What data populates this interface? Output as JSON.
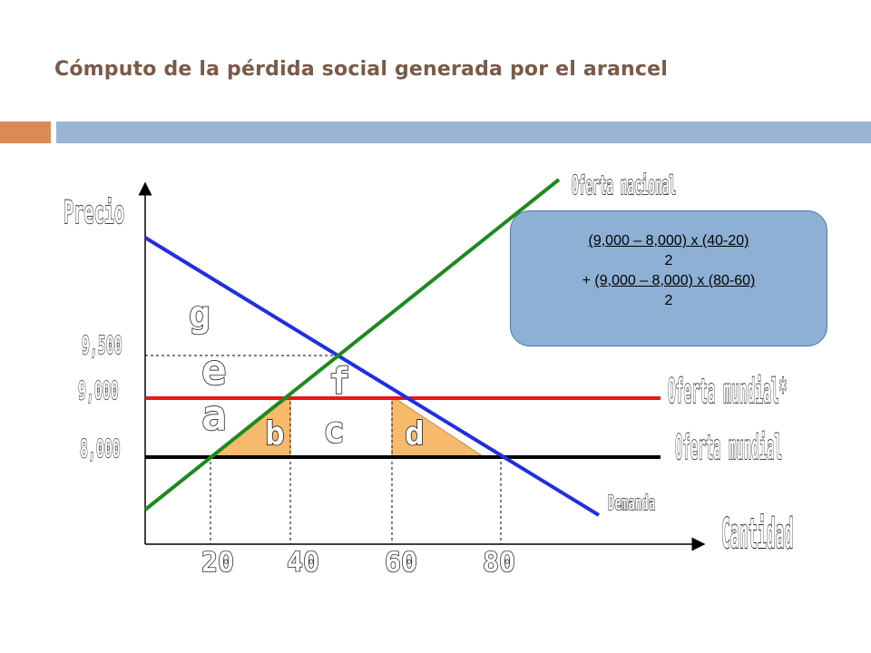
{
  "title": "Cómputo de la pérdida social generada por el arancel",
  "labels": {
    "y_axis": "Precio",
    "x_axis": "Cantidad",
    "oferta_nacional": "Oferta nacional",
    "oferta_mundial_star": "Oferta mundial*",
    "oferta_mundial": "Oferta mundial",
    "demanda": "Demanda"
  },
  "areas": {
    "a": "a",
    "b": "b",
    "c": "c",
    "d": "d",
    "e": "e",
    "f": "f",
    "g": "g"
  },
  "price_ticks": [
    "9,500",
    "9,000",
    "8,000"
  ],
  "quantity_ticks": [
    "20",
    "40",
    "60",
    "80"
  ],
  "formula": {
    "line1": "(9,000 – 8,000) x (40-20)",
    "line2": "2",
    "line3_prefix": "+ ",
    "line3": "(9,000 – 8,000) x (80-60)",
    "line4": "2"
  },
  "colors": {
    "oferta_nacional": "#1e8a1e",
    "demanda": "#1f2fe0",
    "oferta_mundial_star": "#e01a1a",
    "oferta_mundial": "#000000",
    "triangle_fill": "#f7b96b"
  }
}
